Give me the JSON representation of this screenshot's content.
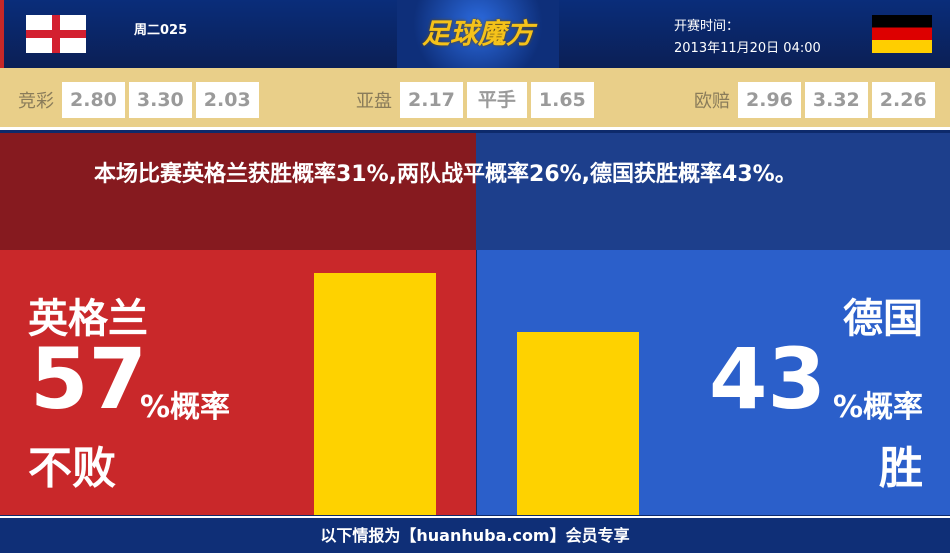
{
  "header": {
    "match_no": "周二025",
    "logo": "足球魔方",
    "kickoff_label": "开赛时间：",
    "kickoff_time": "2013年11月20日 04:00",
    "home_flag": "england-flag",
    "away_flag": "germany-flag"
  },
  "odds": {
    "jingcai": {
      "label": "竞彩",
      "values": [
        "2.80",
        "3.30",
        "2.03"
      ]
    },
    "yapan": {
      "label": "亚盘",
      "values": [
        "2.17",
        "平手",
        "1.65"
      ]
    },
    "oupei": {
      "label": "欧赔",
      "values": [
        "2.96",
        "3.32",
        "2.26"
      ]
    }
  },
  "summary": "本场比赛英格兰获胜概率31%,两队战平概率26%,德国获胜概率43%。",
  "home": {
    "team": "英格兰",
    "percent": "57",
    "unit": "%概率",
    "outcome": "不败",
    "value": 57
  },
  "away": {
    "team": "德国",
    "percent": "43",
    "unit": "%概率",
    "outcome": "胜",
    "value": 43
  },
  "colors": {
    "home_bg": "#c9282a",
    "away_bg": "#2b5fca",
    "bar": "#fed200",
    "odds_bg": "#e9cf89"
  },
  "footer": "以下情报为【huanhuba.com】会员专享"
}
